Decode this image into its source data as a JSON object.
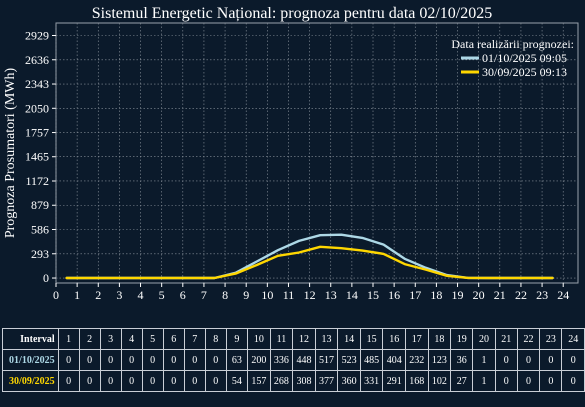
{
  "chart_data": {
    "type": "line",
    "title": "Sistemul Energetic Național: prognoza pentru data 02/10/2025",
    "ylabel": "Prognoza Prosumatori (MWh)",
    "xlabel": "",
    "x": [
      0.5,
      1.5,
      2.5,
      3.5,
      4.5,
      5.5,
      6.5,
      7.5,
      8.5,
      9.5,
      10.5,
      11.5,
      12.5,
      13.5,
      14.5,
      15.5,
      16.5,
      17.5,
      18.5,
      19.5,
      20.5,
      21.5,
      22.5,
      23.5
    ],
    "x_ticks": [
      0,
      1,
      2,
      3,
      4,
      5,
      6,
      7,
      8,
      9,
      10,
      11,
      12,
      13,
      14,
      15,
      16,
      17,
      18,
      19,
      20,
      21,
      22,
      23,
      24
    ],
    "y_ticks": [
      0,
      293,
      586,
      879,
      1172,
      1465,
      1757,
      2050,
      2343,
      2636,
      2929
    ],
    "xlim": [
      0,
      24.7
    ],
    "ylim": [
      -60,
      3080
    ],
    "grid": true,
    "legend_title": "Data realizării prognozei:",
    "legend_position": "top-right",
    "series": [
      {
        "name": "01/10/2025 09:05",
        "color": "#add8e6",
        "values": [
          0,
          0,
          0,
          0,
          0,
          0,
          0,
          0,
          63,
          200,
          336,
          448,
          517,
          523,
          485,
          404,
          232,
          123,
          36,
          1,
          0,
          0,
          0,
          0
        ]
      },
      {
        "name": "30/09/2025 09:13",
        "color": "#ffd700",
        "values": [
          0,
          0,
          0,
          0,
          0,
          0,
          0,
          0,
          54,
          157,
          268,
          308,
          377,
          360,
          331,
          291,
          168,
          102,
          27,
          1,
          0,
          0,
          0,
          0
        ]
      }
    ]
  },
  "table": {
    "header_label": "Interval",
    "intervals": [
      "1",
      "2",
      "3",
      "4",
      "5",
      "6",
      "7",
      "8",
      "9",
      "10",
      "11",
      "12",
      "13",
      "14",
      "15",
      "16",
      "17",
      "18",
      "19",
      "20",
      "21",
      "22",
      "23",
      "24"
    ],
    "rows": [
      {
        "label": "01/10/2025",
        "color": "#add8e6",
        "values": [
          "0",
          "0",
          "0",
          "0",
          "0",
          "0",
          "0",
          "0",
          "63",
          "200",
          "336",
          "448",
          "517",
          "523",
          "485",
          "404",
          "232",
          "123",
          "36",
          "1",
          "0",
          "0",
          "0",
          "0"
        ]
      },
      {
        "label": "30/09/2025",
        "color": "#ffd700",
        "values": [
          "0",
          "0",
          "0",
          "0",
          "0",
          "0",
          "0",
          "0",
          "54",
          "157",
          "268",
          "308",
          "377",
          "360",
          "331",
          "291",
          "168",
          "102",
          "27",
          "1",
          "0",
          "0",
          "0",
          "0"
        ]
      }
    ]
  }
}
